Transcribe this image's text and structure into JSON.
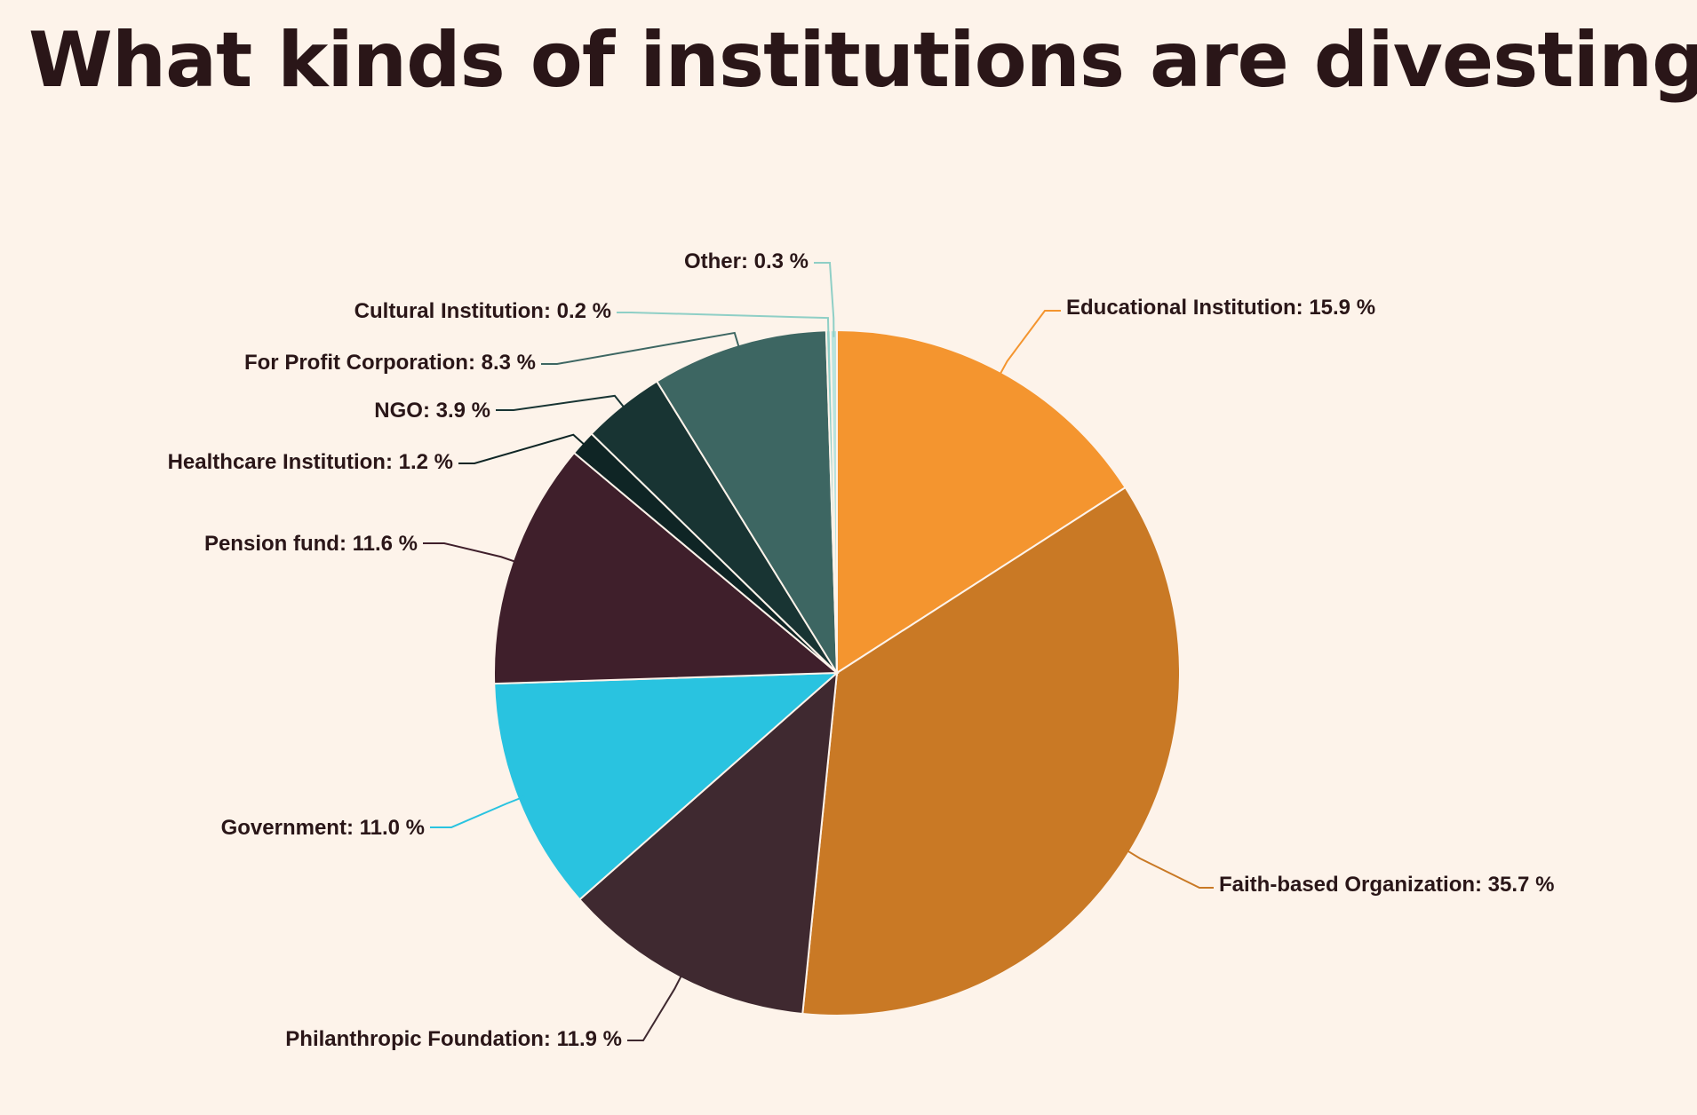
{
  "title": "What kinds of institutions are divesting?",
  "chart_data": {
    "type": "pie",
    "title": "What kinds of institutions are divesting?",
    "unit": "%",
    "slices": [
      {
        "label": "Educational Institution: 15.9 %",
        "name": "Educational Institution",
        "value": 15.9,
        "color": "#f4952f"
      },
      {
        "label": "Faith-based Organization: 35.7 %",
        "name": "Faith-based Organization",
        "value": 35.7,
        "color": "#c97925"
      },
      {
        "label": "Philanthropic Foundation: 11.9 %",
        "name": "Philanthropic Foundation",
        "value": 11.9,
        "color": "#3f2930"
      },
      {
        "label": "Government: 11.0 %",
        "name": "Government",
        "value": 11.0,
        "color": "#29c3e0"
      },
      {
        "label": "Pension fund: 11.6 %",
        "name": "Pension fund",
        "value": 11.6,
        "color": "#3f1f2b"
      },
      {
        "label": "Healthcare Institution: 1.2 %",
        "name": "Healthcare Institution",
        "value": 1.2,
        "color": "#0f2525"
      },
      {
        "label": "NGO: 3.9 %",
        "name": "NGO",
        "value": 3.9,
        "color": "#183433"
      },
      {
        "label": "For Profit Corporation: 8.3 %",
        "name": "For Profit Corporation",
        "value": 8.3,
        "color": "#3d6662"
      },
      {
        "label": "Cultural Institution: 0.2 %",
        "name": "Cultural Institution",
        "value": 0.2,
        "color": "#8fcfc6"
      },
      {
        "label": "Other: 0.3 %",
        "name": "Other",
        "value": 0.3,
        "color": "#b8e3de"
      }
    ]
  }
}
